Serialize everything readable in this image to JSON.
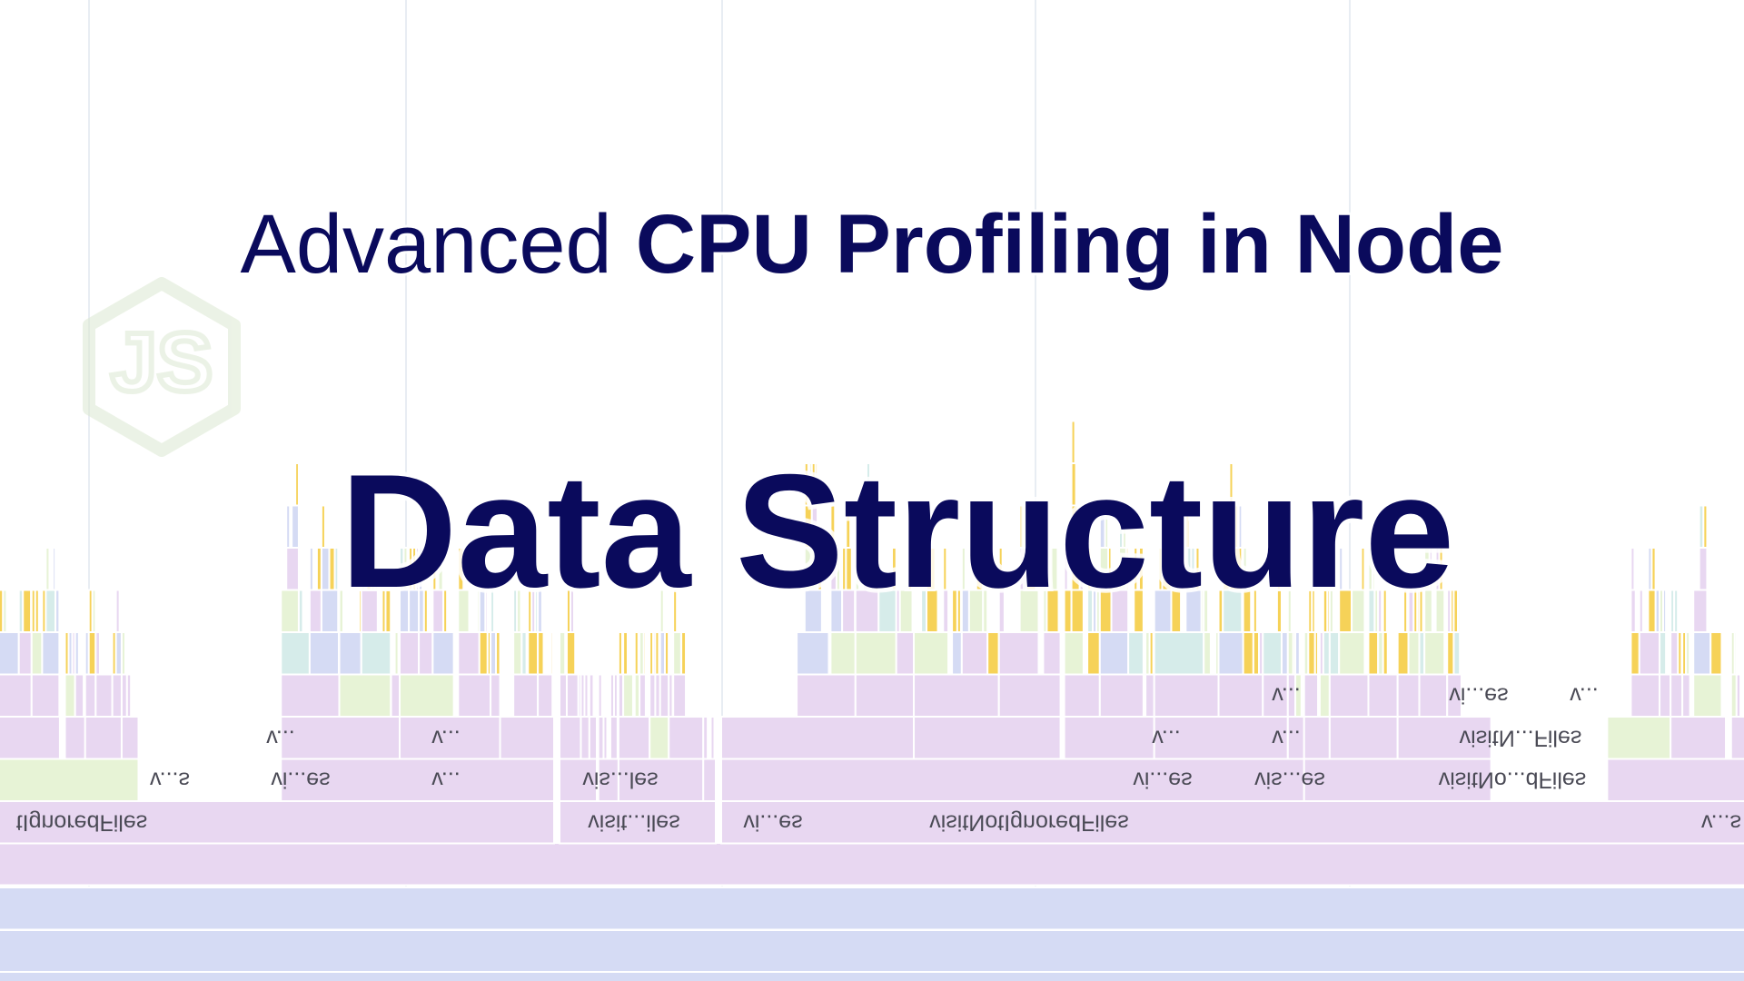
{
  "title": {
    "regular": "Advanced",
    "bold": "CPU Profiling in Node"
  },
  "subtitle": "Data Structure",
  "logo": "JS",
  "flame_labels": [
    "v...s",
    "vi...es",
    "v...",
    "vis...les",
    "vi...es",
    "vis...es",
    "visitNo...dFiles",
    "tIgnoredFiles",
    "visit...iles",
    "vi...es",
    "visitNotIgnoredFiles",
    "v...s",
    "v...",
    "v...",
    "v...",
    "v...",
    "visitN...Files",
    "v...",
    "vi...es",
    "v..."
  ]
}
